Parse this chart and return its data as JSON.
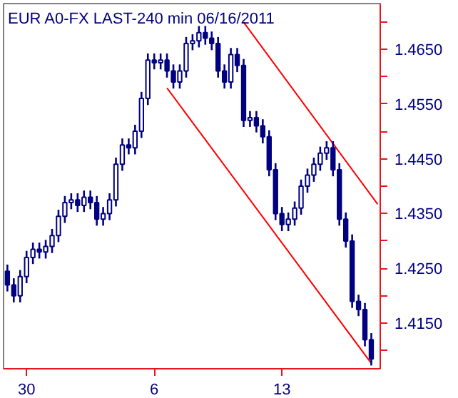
{
  "chart_data": {
    "type": "candlestick",
    "title": "EUR A0-FX LAST-240 min   06/16/2011",
    "color": "#000080",
    "categories": [
      null,
      null,
      null,
      "30",
      null,
      null,
      null,
      null,
      null,
      null,
      null,
      null,
      null,
      null,
      null,
      null,
      null,
      null,
      null,
      null,
      null,
      null,
      null,
      "6",
      null,
      null,
      null,
      null,
      null,
      null,
      null,
      null,
      null,
      null,
      null,
      null,
      null,
      null,
      null,
      null,
      null,
      null,
      null,
      "13",
      null,
      null,
      null,
      null,
      null,
      null,
      null,
      null,
      null,
      null,
      null,
      null,
      null,
      null,
      null
    ],
    "ohlc": [
      [
        1.4245,
        1.4257,
        1.4208,
        1.422
      ],
      [
        1.422,
        1.4232,
        1.4188,
        1.42
      ],
      [
        1.42,
        1.4247,
        1.4188,
        1.4235
      ],
      [
        1.4235,
        1.4282,
        1.4223,
        1.427
      ],
      [
        1.427,
        1.4297,
        1.4258,
        1.4285
      ],
      [
        1.4285,
        1.4297,
        1.4268,
        1.428
      ],
      [
        1.428,
        1.4302,
        1.4268,
        1.429
      ],
      [
        1.429,
        1.4322,
        1.4278,
        1.431
      ],
      [
        1.431,
        1.4357,
        1.4298,
        1.4345
      ],
      [
        1.4345,
        1.4382,
        1.4333,
        1.437
      ],
      [
        1.437,
        1.4387,
        1.4358,
        1.4375
      ],
      [
        1.4375,
        1.4387,
        1.4353,
        1.4365
      ],
      [
        1.4365,
        1.4392,
        1.4353,
        1.438
      ],
      [
        1.438,
        1.4392,
        1.4358,
        1.437
      ],
      [
        1.437,
        1.4382,
        1.4328,
        1.434
      ],
      [
        1.434,
        1.4362,
        1.4328,
        1.435
      ],
      [
        1.435,
        1.4387,
        1.4338,
        1.4375
      ],
      [
        1.4375,
        1.4452,
        1.4363,
        1.444
      ],
      [
        1.444,
        1.4487,
        1.4428,
        1.4475
      ],
      [
        1.4475,
        1.4487,
        1.4458,
        1.447
      ],
      [
        1.447,
        1.4512,
        1.4458,
        1.45
      ],
      [
        1.45,
        1.4572,
        1.4488,
        1.456
      ],
      [
        1.456,
        1.4642,
        1.4548,
        1.463
      ],
      [
        1.463,
        1.4642,
        1.4613,
        1.4625
      ],
      [
        1.4625,
        1.4642,
        1.4613,
        1.463
      ],
      [
        1.463,
        1.4642,
        1.4598,
        1.461
      ],
      [
        1.461,
        1.4622,
        1.4578,
        1.459
      ],
      [
        1.459,
        1.4622,
        1.4578,
        1.461
      ],
      [
        1.461,
        1.4672,
        1.4598,
        1.466
      ],
      [
        1.466,
        1.4677,
        1.4648,
        1.4665
      ],
      [
        1.4665,
        1.4692,
        1.4653,
        1.468
      ],
      [
        1.468,
        1.4692,
        1.4658,
        1.467
      ],
      [
        1.467,
        1.4682,
        1.4648,
        1.466
      ],
      [
        1.466,
        1.4672,
        1.4598,
        1.461
      ],
      [
        1.461,
        1.4622,
        1.4578,
        1.459
      ],
      [
        1.459,
        1.4652,
        1.4578,
        1.464
      ],
      [
        1.464,
        1.4652,
        1.4608,
        1.462
      ],
      [
        1.462,
        1.4632,
        1.4508,
        1.452
      ],
      [
        1.452,
        1.4537,
        1.4508,
        1.4525
      ],
      [
        1.4525,
        1.4537,
        1.4498,
        1.451
      ],
      [
        1.451,
        1.4522,
        1.4478,
        1.449
      ],
      [
        1.449,
        1.4502,
        1.4418,
        1.443
      ],
      [
        1.443,
        1.4442,
        1.4338,
        1.435
      ],
      [
        1.435,
        1.4362,
        1.4318,
        1.433
      ],
      [
        1.433,
        1.4352,
        1.4318,
        1.434
      ],
      [
        1.434,
        1.4372,
        1.4328,
        1.436
      ],
      [
        1.436,
        1.4412,
        1.4348,
        1.44
      ],
      [
        1.44,
        1.4432,
        1.4388,
        1.442
      ],
      [
        1.442,
        1.4452,
        1.4408,
        1.444
      ],
      [
        1.444,
        1.4472,
        1.4428,
        1.446
      ],
      [
        1.446,
        1.4482,
        1.4448,
        1.447
      ],
      [
        1.447,
        1.4482,
        1.4418,
        1.443
      ],
      [
        1.443,
        1.4442,
        1.4328,
        1.434
      ],
      [
        1.434,
        1.4352,
        1.4288,
        1.43
      ],
      [
        1.43,
        1.4312,
        1.4178,
        1.419
      ],
      [
        1.419,
        1.4202,
        1.4163,
        1.4175
      ],
      [
        1.4175,
        1.4187,
        1.4108,
        1.412
      ],
      [
        1.412,
        1.4132,
        1.4073,
        1.4085
      ],
      null
    ],
    "series": [
      {
        "type": "line",
        "color": "#ff0000",
        "values": [
          null,
          null,
          null,
          null,
          null,
          null,
          null,
          null,
          null,
          null,
          null,
          null,
          null,
          null,
          null,
          null,
          null,
          null,
          null,
          null,
          null,
          null,
          null,
          null,
          null,
          null,
          null,
          null,
          null,
          null,
          null,
          null,
          null,
          null,
          null,
          null,
          null,
          1.4699,
          null,
          null,
          null,
          null,
          null,
          null,
          null,
          null,
          null,
          null,
          null,
          null,
          null,
          null,
          null,
          null,
          null,
          null,
          null,
          null,
          1.4367
        ]
      },
      {
        "type": "line",
        "color": "#ff0000",
        "values": [
          null,
          null,
          null,
          null,
          null,
          null,
          null,
          null,
          null,
          null,
          null,
          null,
          null,
          null,
          null,
          null,
          null,
          null,
          null,
          null,
          null,
          null,
          null,
          null,
          null,
          1.4579,
          null,
          null,
          null,
          null,
          null,
          null,
          null,
          null,
          null,
          null,
          null,
          null,
          null,
          null,
          null,
          null,
          null,
          null,
          null,
          null,
          null,
          null,
          null,
          null,
          null,
          null,
          null,
          null,
          null,
          null,
          null,
          1.4077,
          null
        ]
      }
    ],
    "ylim": [
      1.4067,
      1.4733
    ],
    "yticks": [
      {
        "value": 1.41,
        "label": null
      },
      {
        "value": 1.415,
        "label": "1.4150"
      },
      {
        "value": 1.42,
        "label": null
      },
      {
        "value": 1.425,
        "label": "1.4250"
      },
      {
        "value": 1.43,
        "label": null
      },
      {
        "value": 1.435,
        "label": "1.4350"
      },
      {
        "value": 1.44,
        "label": null
      },
      {
        "value": 1.445,
        "label": "1.4450"
      },
      {
        "value": 1.45,
        "label": null
      },
      {
        "value": 1.455,
        "label": "1.4550"
      },
      {
        "value": 1.46,
        "label": null
      },
      {
        "value": 1.465,
        "label": "1.4650"
      },
      {
        "value": 1.47,
        "label": null
      }
    ],
    "grid": false
  }
}
